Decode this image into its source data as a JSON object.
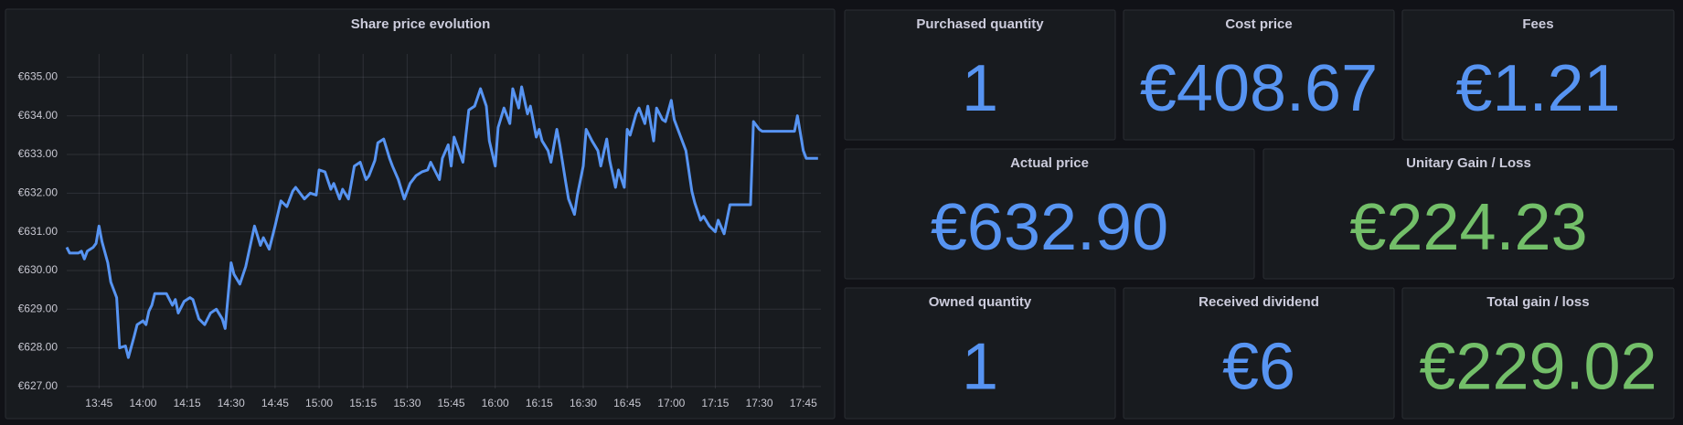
{
  "chart_data": {
    "type": "line",
    "title": "Share price evolution",
    "color": "#5794f2",
    "grid": true,
    "x": [
      "13:34",
      "13:35",
      "13:38",
      "13:39",
      "13:40",
      "13:41",
      "13:43",
      "13:44",
      "13:45",
      "13:46",
      "13:48",
      "13:49",
      "13:51",
      "13:52",
      "13:54",
      "13:55",
      "13:57",
      "13:58",
      "14:00",
      "14:01",
      "14:02",
      "14:03",
      "14:04",
      "14:06",
      "14:08",
      "14:10",
      "14:11",
      "14:12",
      "14:14",
      "14:16",
      "14:17",
      "14:19",
      "14:21",
      "14:23",
      "14:25",
      "14:27",
      "14:28",
      "14:30",
      "14:31",
      "14:33",
      "14:35",
      "14:37",
      "14:38",
      "14:40",
      "14:41",
      "14:43",
      "14:45",
      "14:47",
      "14:49",
      "14:51",
      "14:52",
      "14:55",
      "14:57",
      "14:59",
      "15:00",
      "15:02",
      "15:04",
      "15:05",
      "15:07",
      "15:08",
      "15:10",
      "15:12",
      "15:14",
      "15:16",
      "15:17",
      "15:19",
      "15:20",
      "15:22",
      "15:24",
      "15:25",
      "15:27",
      "15:29",
      "15:31",
      "15:33",
      "15:35",
      "15:37",
      "15:38",
      "15:41",
      "15:42",
      "15:44",
      "15:45",
      "15:46",
      "15:49",
      "15:50",
      "15:51",
      "15:53",
      "15:55",
      "15:57",
      "15:58",
      "16:00",
      "16:01",
      "16:03",
      "16:05",
      "16:06",
      "16:08",
      "16:09",
      "16:11",
      "16:12",
      "16:14",
      "16:15",
      "16:16",
      "16:18",
      "16:19",
      "16:21",
      "16:22",
      "16:24",
      "16:25",
      "16:27",
      "16:28",
      "16:30",
      "16:31",
      "16:33",
      "16:35",
      "16:36",
      "16:38",
      "16:39",
      "16:41",
      "16:42",
      "16:44",
      "16:45",
      "16:46",
      "16:48",
      "16:49",
      "16:51",
      "16:52",
      "16:54",
      "16:55",
      "16:57",
      "16:58",
      "17:00",
      "17:01",
      "17:03",
      "17:05",
      "17:07",
      "17:08",
      "17:10",
      "17:11",
      "17:13",
      "17:15",
      "17:16",
      "17:18",
      "17:20",
      "17:24",
      "17:27",
      "17:28",
      "17:30",
      "17:31",
      "17:35",
      "17:38",
      "17:42",
      "17:43",
      "17:45",
      "17:46",
      "17:50"
    ],
    "values": [
      630.6,
      630.45,
      630.45,
      630.5,
      630.3,
      630.5,
      630.6,
      630.7,
      631.15,
      630.75,
      630.2,
      629.7,
      629.3,
      628.0,
      628.05,
      627.75,
      628.3,
      628.6,
      628.7,
      628.6,
      628.95,
      629.1,
      629.4,
      629.4,
      629.4,
      629.1,
      629.25,
      628.9,
      629.2,
      629.3,
      629.25,
      628.75,
      628.6,
      628.9,
      629.0,
      628.75,
      628.5,
      630.2,
      629.9,
      629.65,
      630.1,
      630.8,
      631.15,
      630.65,
      630.85,
      630.55,
      631.15,
      631.8,
      631.65,
      632.05,
      632.15,
      631.85,
      632.0,
      631.95,
      632.6,
      632.55,
      632.1,
      632.25,
      631.85,
      632.1,
      631.85,
      632.7,
      632.8,
      632.35,
      632.45,
      632.85,
      633.3,
      633.4,
      632.9,
      632.7,
      632.35,
      631.85,
      632.25,
      632.45,
      632.55,
      632.6,
      632.8,
      632.35,
      632.9,
      633.25,
      632.7,
      633.45,
      632.8,
      633.5,
      634.15,
      634.25,
      634.7,
      634.25,
      633.35,
      632.7,
      633.7,
      634.2,
      633.8,
      634.7,
      634.2,
      634.75,
      634.05,
      634.25,
      633.45,
      633.65,
      633.35,
      633.1,
      632.8,
      633.65,
      633.25,
      632.3,
      631.85,
      631.45,
      631.95,
      632.7,
      633.65,
      633.35,
      633.1,
      632.7,
      633.4,
      632.85,
      632.15,
      632.6,
      632.15,
      633.65,
      633.5,
      634.05,
      634.2,
      633.8,
      634.25,
      633.35,
      634.2,
      633.9,
      633.85,
      634.4,
      633.9,
      633.5,
      633.1,
      632.05,
      631.75,
      631.3,
      631.4,
      631.15,
      631.0,
      631.3,
      630.95,
      631.7,
      631.7,
      631.7,
      633.85,
      633.65,
      633.6,
      633.6,
      633.6,
      633.6,
      634.0,
      633.1,
      632.9,
      632.9
    ],
    "xlim": [
      "13:34",
      "17:51"
    ],
    "xticks": [
      "13:45",
      "14:00",
      "14:15",
      "14:30",
      "14:45",
      "15:00",
      "15:15",
      "15:30",
      "15:45",
      "16:00",
      "16:15",
      "16:30",
      "16:45",
      "17:00",
      "17:15",
      "17:30",
      "17:45"
    ],
    "ylim": [
      626.95,
      635.6
    ],
    "yticks": [
      {
        "value": 627,
        "label": "€627.00"
      },
      {
        "value": 628,
        "label": "€628.00"
      },
      {
        "value": 629,
        "label": "€629.00"
      },
      {
        "value": 630,
        "label": "€630.00"
      },
      {
        "value": 631,
        "label": "€631.00"
      },
      {
        "value": 632,
        "label": "€632.00"
      },
      {
        "value": 633,
        "label": "€633.00"
      },
      {
        "value": 634,
        "label": "€634.00"
      },
      {
        "value": 635,
        "label": "€635.00"
      }
    ]
  },
  "stats": [
    {
      "title": "Purchased quantity",
      "value": 1,
      "color": "#5794f2"
    },
    {
      "title": "Cost price",
      "value": 408.67,
      "value_label": "€408.67",
      "color": "#5794f2"
    },
    {
      "title": "Fees",
      "value": 1.21,
      "value_label": "€1.21",
      "color": "#5794f2"
    },
    {
      "title": "Actual price",
      "value": 632.9,
      "value_label": "€632.90",
      "color": "#5794f2"
    },
    {
      "title": "Unitary Gain / Loss",
      "value": 224.23,
      "value_label": "€224.23",
      "color": "#73bf69"
    },
    {
      "title": "Owned quantity",
      "value": 1,
      "color": "#5794f2"
    },
    {
      "title": "Received dividend",
      "value": 6,
      "value_label": "€6",
      "color": "#5794f2"
    },
    {
      "title": "Total gain / loss",
      "value": 229.02,
      "value_label": "€229.02",
      "color": "#73bf69"
    }
  ]
}
